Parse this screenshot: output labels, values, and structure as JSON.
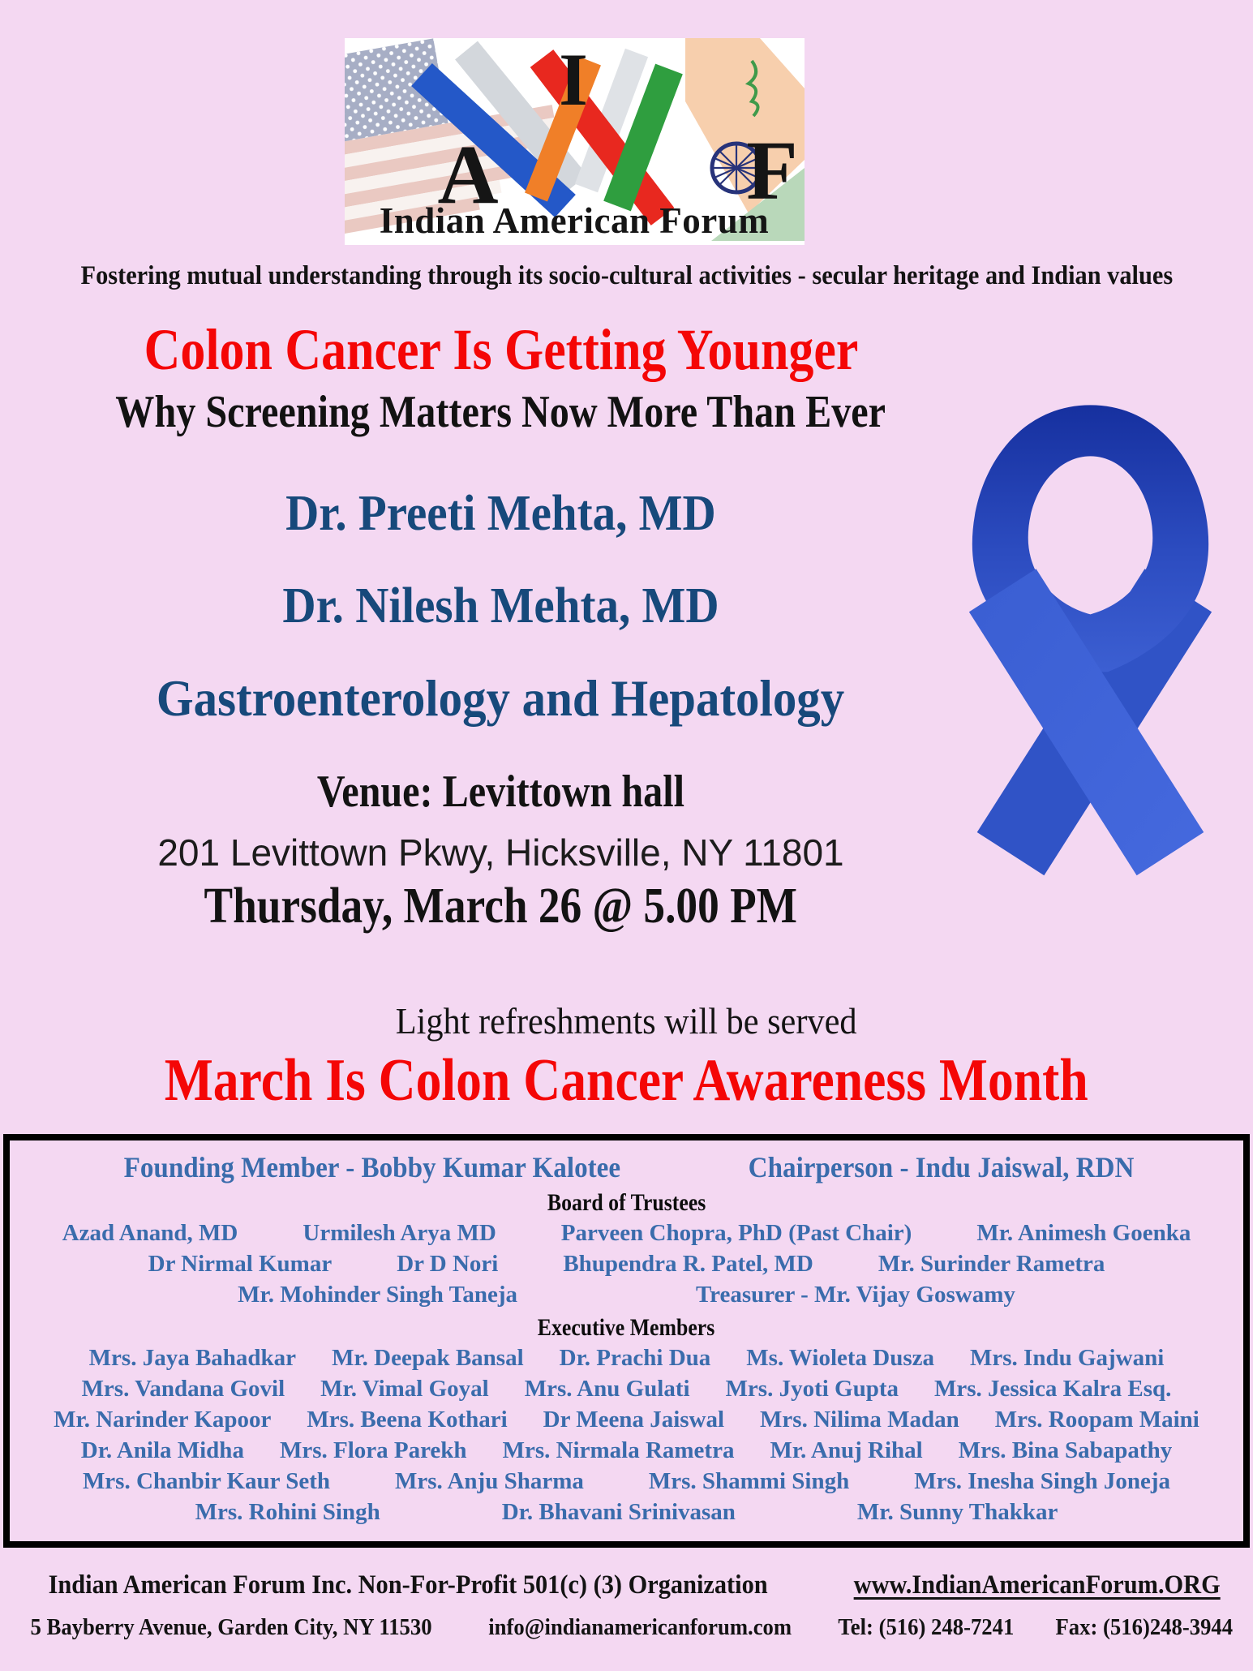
{
  "colors": {
    "background": "#f4d8f2",
    "accent_red": "#f40606",
    "speaker_navy": "#17497b",
    "member_blue": "#3a6cac",
    "ribbon_blue": "#3a5ed2",
    "text_black": "#131313"
  },
  "logo": {
    "letter_i": "I",
    "letter_a": "A",
    "letter_f": "F",
    "org": "Indian American Forum"
  },
  "tagline": "Fostering mutual understanding through its socio-cultural activities - secular heritage and Indian values",
  "headline": {
    "title": "Colon Cancer Is Getting Younger",
    "subtitle": "Why Screening Matters Now More Than Ever"
  },
  "speakers": {
    "line1": "Dr. Preeti Mehta, MD",
    "line2": "Dr. Nilesh Mehta, MD",
    "line3": "Gastroenterology and Hepatology"
  },
  "event": {
    "venue": "Venue: Levittown hall",
    "address": "201 Levittown Pkwy, Hicksville, NY 11801",
    "datetime": "Thursday, March 26 @ 5.00 PM",
    "refreshments": "Light refreshments will be served",
    "awareness": "March Is Colon Cancer Awareness Month"
  },
  "ribbon": {
    "meaning": "blue-colon-cancer-awareness-ribbon"
  },
  "board": {
    "founding": "Founding Member - Bobby Kumar Kalotee",
    "chairperson": "Chairperson - Indu Jaiswal, RDN",
    "trustees_title": "Board of Trustees",
    "trustees_rows": [
      [
        "Azad Anand, MD",
        "Urmilesh Arya MD",
        "Parveen Chopra, PhD (Past Chair)",
        "Mr. Animesh Goenka"
      ],
      [
        "Dr Nirmal Kumar",
        "Dr D Nori",
        "Bhupendra R. Patel, MD",
        "Mr. Surinder Rametra"
      ],
      [
        "Mr. Mohinder Singh Taneja",
        "Treasurer - Mr. Vijay Goswamy"
      ]
    ],
    "executive_title": "Executive Members",
    "executive_rows": [
      [
        "Mrs. Jaya Bahadkar",
        "Mr. Deepak Bansal",
        "Dr. Prachi Dua",
        "Ms. Wioleta Dusza",
        "Mrs. Indu Gajwani"
      ],
      [
        "Mrs. Vandana Govil",
        "Mr. Vimal Goyal",
        "Mrs. Anu Gulati",
        "Mrs. Jyoti Gupta",
        "Mrs. Jessica Kalra Esq."
      ],
      [
        "Mr. Narinder Kapoor",
        "Mrs. Beena Kothari",
        "Dr Meena Jaiswal",
        "Mrs. Nilima Madan",
        "Mrs. Roopam Maini"
      ],
      [
        "Dr. Anila Midha",
        "Mrs. Flora Parekh",
        "Mrs. Nirmala Rametra",
        "Mr. Anuj Rihal",
        "Mrs. Bina Sabapathy"
      ],
      [
        "Mrs. Chanbir Kaur Seth",
        "Mrs. Anju Sharma",
        "Mrs. Shammi Singh",
        "Mrs. Inesha Singh Joneja"
      ],
      [
        "Mrs. Rohini Singh",
        "Dr. Bhavani Srinivasan",
        "Mr. Sunny Thakkar"
      ]
    ]
  },
  "footer": {
    "org_line": "Indian American Forum Inc.  Non-For-Profit 501(c) (3) Organization",
    "website": "www.IndianAmericanForum.ORG",
    "address": "5 Bayberry Avenue, Garden City, NY 11530",
    "email": "info@indianamericanforum.com",
    "tel": "Tel: (516) 248-7241",
    "fax": "Fax: (516)248-3944"
  }
}
